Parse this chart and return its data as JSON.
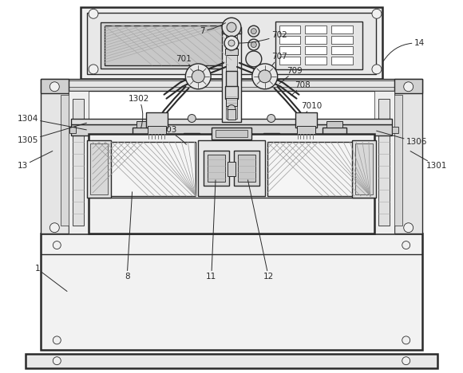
{
  "bg_color": "#ffffff",
  "line_color": "#2a2a2a",
  "lw": 1.0,
  "lw_thick": 1.8,
  "lw_thin": 0.5,
  "label_fs": 7.5
}
